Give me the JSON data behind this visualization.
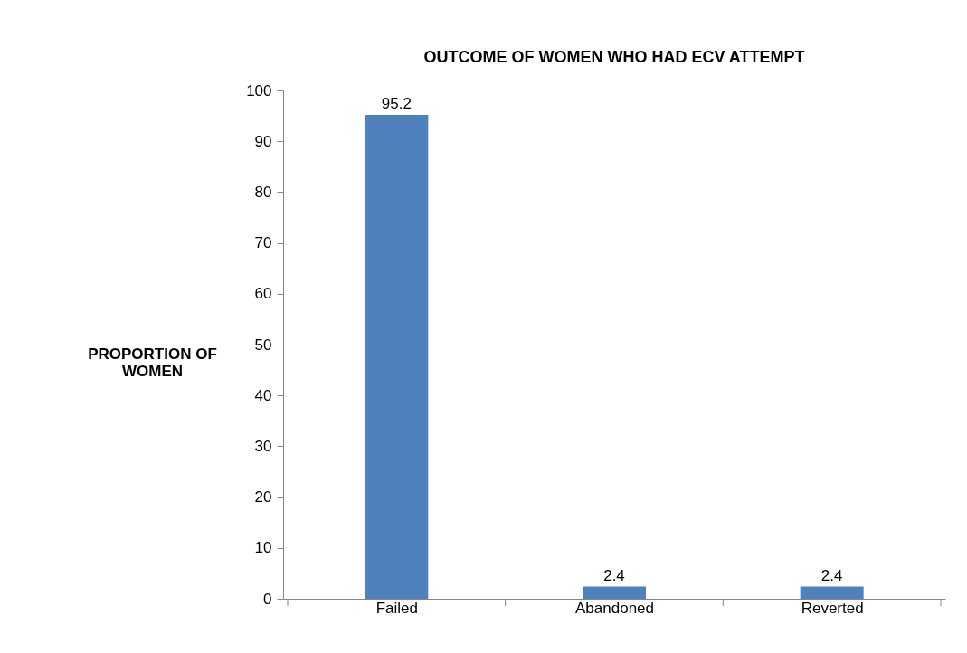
{
  "chart_data": {
    "type": "bar",
    "title": "OUTCOME OF WOMEN WHO HAD ECV ATTEMPT",
    "ylabel": "PROPORTION OF WOMEN",
    "categories": [
      "Failed",
      "Abandoned",
      "Reverted"
    ],
    "values": [
      95.2,
      2.4,
      2.4
    ],
    "color": "#4f81bd",
    "ylim": [
      0,
      100
    ],
    "yticks": [
      0,
      10,
      20,
      30,
      40,
      50,
      60,
      70,
      80,
      90,
      100
    ],
    "grid": false,
    "data_labels": true
  }
}
